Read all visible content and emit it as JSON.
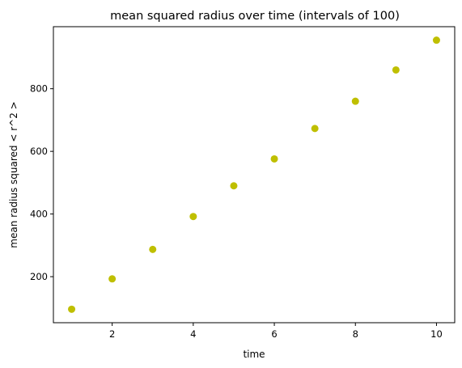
{
  "chart_data": {
    "type": "scatter",
    "title": "mean squared radius over time (intervals of 100)",
    "xlabel": "time",
    "ylabel": "mean radius squared < r^2 >",
    "x": [
      1,
      2,
      3,
      4,
      5,
      6,
      7,
      8,
      9,
      10
    ],
    "y": [
      96,
      193,
      287,
      392,
      490,
      576,
      673,
      760,
      860,
      955
    ],
    "xlim": [
      0.55,
      10.45
    ],
    "ylim": [
      53,
      998
    ],
    "xticks": [
      2,
      4,
      6,
      8,
      10
    ],
    "yticks": [
      200,
      400,
      600,
      800
    ],
    "marker_color": "#bfbf00",
    "grid": false,
    "legend": "none"
  }
}
